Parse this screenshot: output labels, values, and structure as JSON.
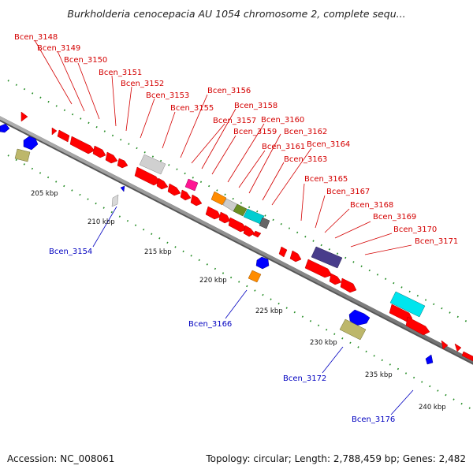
{
  "title": "Burkholderia cenocepacia AU 1054 chromosome 2, complete sequ...",
  "footer": {
    "accession": "Accession: NC_008061",
    "summary": "Topology: circular; Length: 2,788,459 bp; Genes: 2,482"
  },
  "scale": {
    "ticks": [
      "205 kbp",
      "210 kbp",
      "215 kbp",
      "220 kbp",
      "225 kbp",
      "230 kbp",
      "235 kbp",
      "240 kbp"
    ]
  },
  "genes_top": [
    "Bcen_3148",
    "Bcen_3149",
    "Bcen_3150",
    "Bcen_3151",
    "Bcen_3152",
    "Bcen_3153",
    "Bcen_3155",
    "Bcen_3156",
    "Bcen_3157",
    "Bcen_3158",
    "Bcen_3159",
    "Bcen_3160",
    "Bcen_3161",
    "Bcen_3162",
    "Bcen_3163",
    "Bcen_3164",
    "Bcen_3165",
    "Bcen_3167",
    "Bcen_3168",
    "Bcen_3169",
    "Bcen_3170",
    "Bcen_3171"
  ],
  "genes_bottom": [
    "Bcen_3154",
    "Bcen_3166",
    "Bcen_3172",
    "Bcen_3176"
  ],
  "colors": {
    "forward": "#ff0000",
    "reverse": "#0000ff",
    "backbone": "#888888",
    "label_top": "#d40000",
    "label_bottom": "#0000c0",
    "tick": "#228b22",
    "cds_gray": "#c8c8c8",
    "cds_magenta": "#ff1493",
    "cds_orange": "#ff8c00",
    "cds_olive": "#6b8e23",
    "cds_cyan": "#00ced1",
    "cds_darkgray": "#666666",
    "cds_purple": "#483d8b",
    "cds_khaki": "#bdb76b"
  }
}
